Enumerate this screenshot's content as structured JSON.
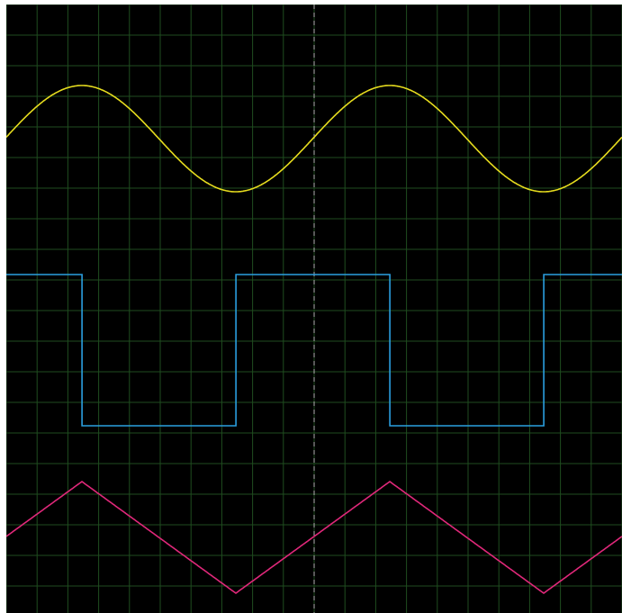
{
  "chart_data": {
    "type": "line",
    "title": "",
    "xlabel": "",
    "ylabel": "",
    "grid": true,
    "xlim": [
      0,
      1
    ],
    "ylim": [
      -1,
      1
    ],
    "period": 0.5,
    "cursor_x": 0.5,
    "colors": {
      "background": "#000000",
      "grid": "#1f4d1f",
      "cursor": "#b0b0b0",
      "sine": "#e6dc1e",
      "square": "#2a9fe0",
      "triangle": "#e0287a"
    },
    "series": [
      {
        "waveform": "sine",
        "color": "#e6dc1e",
        "amplitude": 1,
        "phase": 0
      },
      {
        "waveform": "square",
        "color": "#2a9fe0",
        "amplitude": 1,
        "phase": 0
      },
      {
        "waveform": "triangle",
        "color": "#e0287a",
        "amplitude": 1,
        "phase": 0
      }
    ]
  }
}
